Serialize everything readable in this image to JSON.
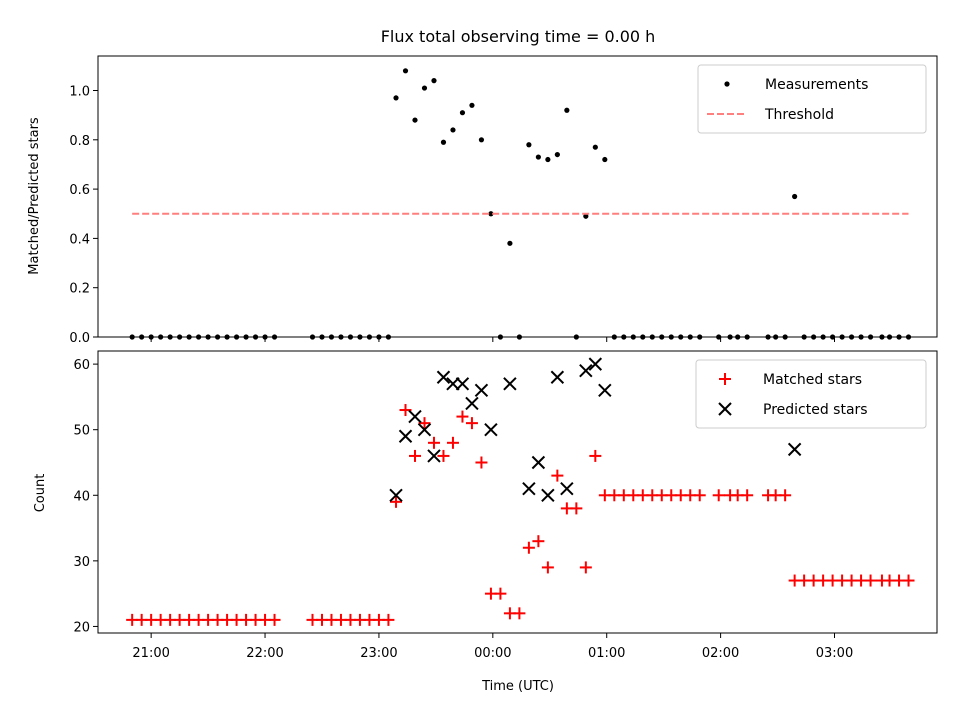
{
  "chart_data": [
    {
      "type": "scatter",
      "title": "Flux total observing time = 0.00 h",
      "xlabel": "",
      "ylabel": "Matched/Predicted stars",
      "xlim": [
        "20:32",
        "03:54"
      ],
      "ylim": [
        0,
        1.14
      ],
      "yticks": [
        "0.0",
        "0.2",
        "0.4",
        "0.6",
        "0.8",
        "1.0"
      ],
      "ytick_values": [
        0,
        0.2,
        0.4,
        0.6,
        0.8,
        1.0
      ],
      "legend_position": "top-right",
      "series": [
        {
          "name": "Measurements",
          "marker": "dot",
          "color": "#000000",
          "points": [
            [
              "20:50",
              0
            ],
            [
              "20:55",
              0
            ],
            [
              "21:00",
              0
            ],
            [
              "21:05",
              0
            ],
            [
              "21:10",
              0
            ],
            [
              "21:15",
              0
            ],
            [
              "21:20",
              0
            ],
            [
              "21:25",
              0
            ],
            [
              "21:30",
              0
            ],
            [
              "21:35",
              0
            ],
            [
              "21:40",
              0
            ],
            [
              "21:45",
              0
            ],
            [
              "21:50",
              0
            ],
            [
              "21:55",
              0
            ],
            [
              "22:00",
              0
            ],
            [
              "22:05",
              0
            ],
            [
              "22:25",
              0
            ],
            [
              "22:30",
              0
            ],
            [
              "22:35",
              0
            ],
            [
              "22:40",
              0
            ],
            [
              "22:45",
              0
            ],
            [
              "22:50",
              0
            ],
            [
              "22:55",
              0
            ],
            [
              "23:00",
              0
            ],
            [
              "23:05",
              0
            ],
            [
              "23:09",
              0.97
            ],
            [
              "23:14",
              1.08
            ],
            [
              "23:19",
              0.88
            ],
            [
              "23:24",
              1.01
            ],
            [
              "23:29",
              1.04
            ],
            [
              "23:34",
              0.79
            ],
            [
              "23:39",
              0.84
            ],
            [
              "23:44",
              0.91
            ],
            [
              "23:49",
              0.94
            ],
            [
              "23:54",
              0.8
            ],
            [
              "23:59",
              0.5
            ],
            [
              "00:04",
              0
            ],
            [
              "00:09",
              0.38
            ],
            [
              "00:14",
              0
            ],
            [
              "00:19",
              0.78
            ],
            [
              "00:24",
              0.73
            ],
            [
              "00:29",
              0.72
            ],
            [
              "00:34",
              0.74
            ],
            [
              "00:39",
              0.92
            ],
            [
              "00:44",
              0
            ],
            [
              "00:49",
              0.49
            ],
            [
              "00:54",
              0.77
            ],
            [
              "00:59",
              0.72
            ],
            [
              "01:04",
              0
            ],
            [
              "01:09",
              0
            ],
            [
              "01:14",
              0
            ],
            [
              "01:19",
              0
            ],
            [
              "01:24",
              0
            ],
            [
              "01:29",
              0
            ],
            [
              "01:34",
              0
            ],
            [
              "01:39",
              0
            ],
            [
              "01:44",
              0
            ],
            [
              "01:49",
              0
            ],
            [
              "01:59",
              0
            ],
            [
              "02:05",
              0
            ],
            [
              "02:09",
              0
            ],
            [
              "02:14",
              0
            ],
            [
              "02:25",
              0
            ],
            [
              "02:29",
              0
            ],
            [
              "02:34",
              0
            ],
            [
              "02:39",
              0.57
            ],
            [
              "02:44",
              0
            ],
            [
              "02:49",
              0
            ],
            [
              "02:54",
              0
            ],
            [
              "02:59",
              0
            ],
            [
              "03:04",
              0
            ],
            [
              "03:09",
              0
            ],
            [
              "03:14",
              0
            ],
            [
              "03:19",
              0
            ],
            [
              "03:25",
              0
            ],
            [
              "03:29",
              0
            ],
            [
              "03:34",
              0
            ],
            [
              "03:39",
              0
            ]
          ]
        },
        {
          "name": "Threshold",
          "marker": "dashed-line",
          "color": "#ff7f7f",
          "points": [
            [
              "20:50",
              0.5
            ],
            [
              "03:39",
              0.5
            ]
          ]
        }
      ]
    },
    {
      "type": "scatter",
      "title": "",
      "xlabel": "Time (UTC)",
      "ylabel": "Count",
      "xlim": [
        "20:32",
        "03:54"
      ],
      "ylim": [
        19,
        62
      ],
      "yticks": [
        "20",
        "30",
        "40",
        "50",
        "60"
      ],
      "ytick_values": [
        20,
        30,
        40,
        50,
        60
      ],
      "xticks": [
        "21:00",
        "22:00",
        "23:00",
        "00:00",
        "01:00",
        "02:00",
        "03:00"
      ],
      "legend_position": "top-right",
      "series": [
        {
          "name": "Matched stars",
          "marker": "plus",
          "color": "#ff0000",
          "points": [
            [
              "20:50",
              21
            ],
            [
              "20:55",
              21
            ],
            [
              "21:00",
              21
            ],
            [
              "21:05",
              21
            ],
            [
              "21:10",
              21
            ],
            [
              "21:15",
              21
            ],
            [
              "21:20",
              21
            ],
            [
              "21:25",
              21
            ],
            [
              "21:30",
              21
            ],
            [
              "21:35",
              21
            ],
            [
              "21:40",
              21
            ],
            [
              "21:45",
              21
            ],
            [
              "21:50",
              21
            ],
            [
              "21:55",
              21
            ],
            [
              "22:00",
              21
            ],
            [
              "22:05",
              21
            ],
            [
              "22:25",
              21
            ],
            [
              "22:30",
              21
            ],
            [
              "22:35",
              21
            ],
            [
              "22:40",
              21
            ],
            [
              "22:45",
              21
            ],
            [
              "22:50",
              21
            ],
            [
              "22:55",
              21
            ],
            [
              "23:00",
              21
            ],
            [
              "23:05",
              21
            ],
            [
              "23:09",
              39
            ],
            [
              "23:14",
              53
            ],
            [
              "23:19",
              46
            ],
            [
              "23:24",
              51
            ],
            [
              "23:29",
              48
            ],
            [
              "23:34",
              46
            ],
            [
              "23:39",
              48
            ],
            [
              "23:44",
              52
            ],
            [
              "23:49",
              51
            ],
            [
              "23:54",
              45
            ],
            [
              "23:59",
              25
            ],
            [
              "00:04",
              25
            ],
            [
              "00:09",
              22
            ],
            [
              "00:14",
              22
            ],
            [
              "00:19",
              32
            ],
            [
              "00:24",
              33
            ],
            [
              "00:29",
              29
            ],
            [
              "00:34",
              43
            ],
            [
              "00:39",
              38
            ],
            [
              "00:44",
              38
            ],
            [
              "00:49",
              29
            ],
            [
              "00:54",
              46
            ],
            [
              "00:59",
              40
            ],
            [
              "01:04",
              40
            ],
            [
              "01:09",
              40
            ],
            [
              "01:14",
              40
            ],
            [
              "01:19",
              40
            ],
            [
              "01:24",
              40
            ],
            [
              "01:29",
              40
            ],
            [
              "01:34",
              40
            ],
            [
              "01:39",
              40
            ],
            [
              "01:44",
              40
            ],
            [
              "01:49",
              40
            ],
            [
              "01:59",
              40
            ],
            [
              "02:05",
              40
            ],
            [
              "02:09",
              40
            ],
            [
              "02:14",
              40
            ],
            [
              "02:25",
              40
            ],
            [
              "02:29",
              40
            ],
            [
              "02:34",
              40
            ],
            [
              "02:39",
              27
            ],
            [
              "02:44",
              27
            ],
            [
              "02:49",
              27
            ],
            [
              "02:54",
              27
            ],
            [
              "02:59",
              27
            ],
            [
              "03:04",
              27
            ],
            [
              "03:09",
              27
            ],
            [
              "03:14",
              27
            ],
            [
              "03:19",
              27
            ],
            [
              "03:25",
              27
            ],
            [
              "03:29",
              27
            ],
            [
              "03:34",
              27
            ],
            [
              "03:39",
              27
            ]
          ]
        },
        {
          "name": "Predicted stars",
          "marker": "x",
          "color": "#000000",
          "points": [
            [
              "23:09",
              40
            ],
            [
              "23:14",
              49
            ],
            [
              "23:19",
              52
            ],
            [
              "23:24",
              50
            ],
            [
              "23:29",
              46
            ],
            [
              "23:34",
              58
            ],
            [
              "23:39",
              57
            ],
            [
              "23:44",
              57
            ],
            [
              "23:49",
              54
            ],
            [
              "23:54",
              56
            ],
            [
              "23:59",
              50
            ],
            [
              "00:09",
              57
            ],
            [
              "00:19",
              41
            ],
            [
              "00:24",
              45
            ],
            [
              "00:29",
              40
            ],
            [
              "00:34",
              58
            ],
            [
              "00:39",
              41
            ],
            [
              "00:49",
              59
            ],
            [
              "00:54",
              60
            ],
            [
              "00:59",
              56
            ],
            [
              "02:39",
              47
            ]
          ]
        }
      ]
    }
  ]
}
